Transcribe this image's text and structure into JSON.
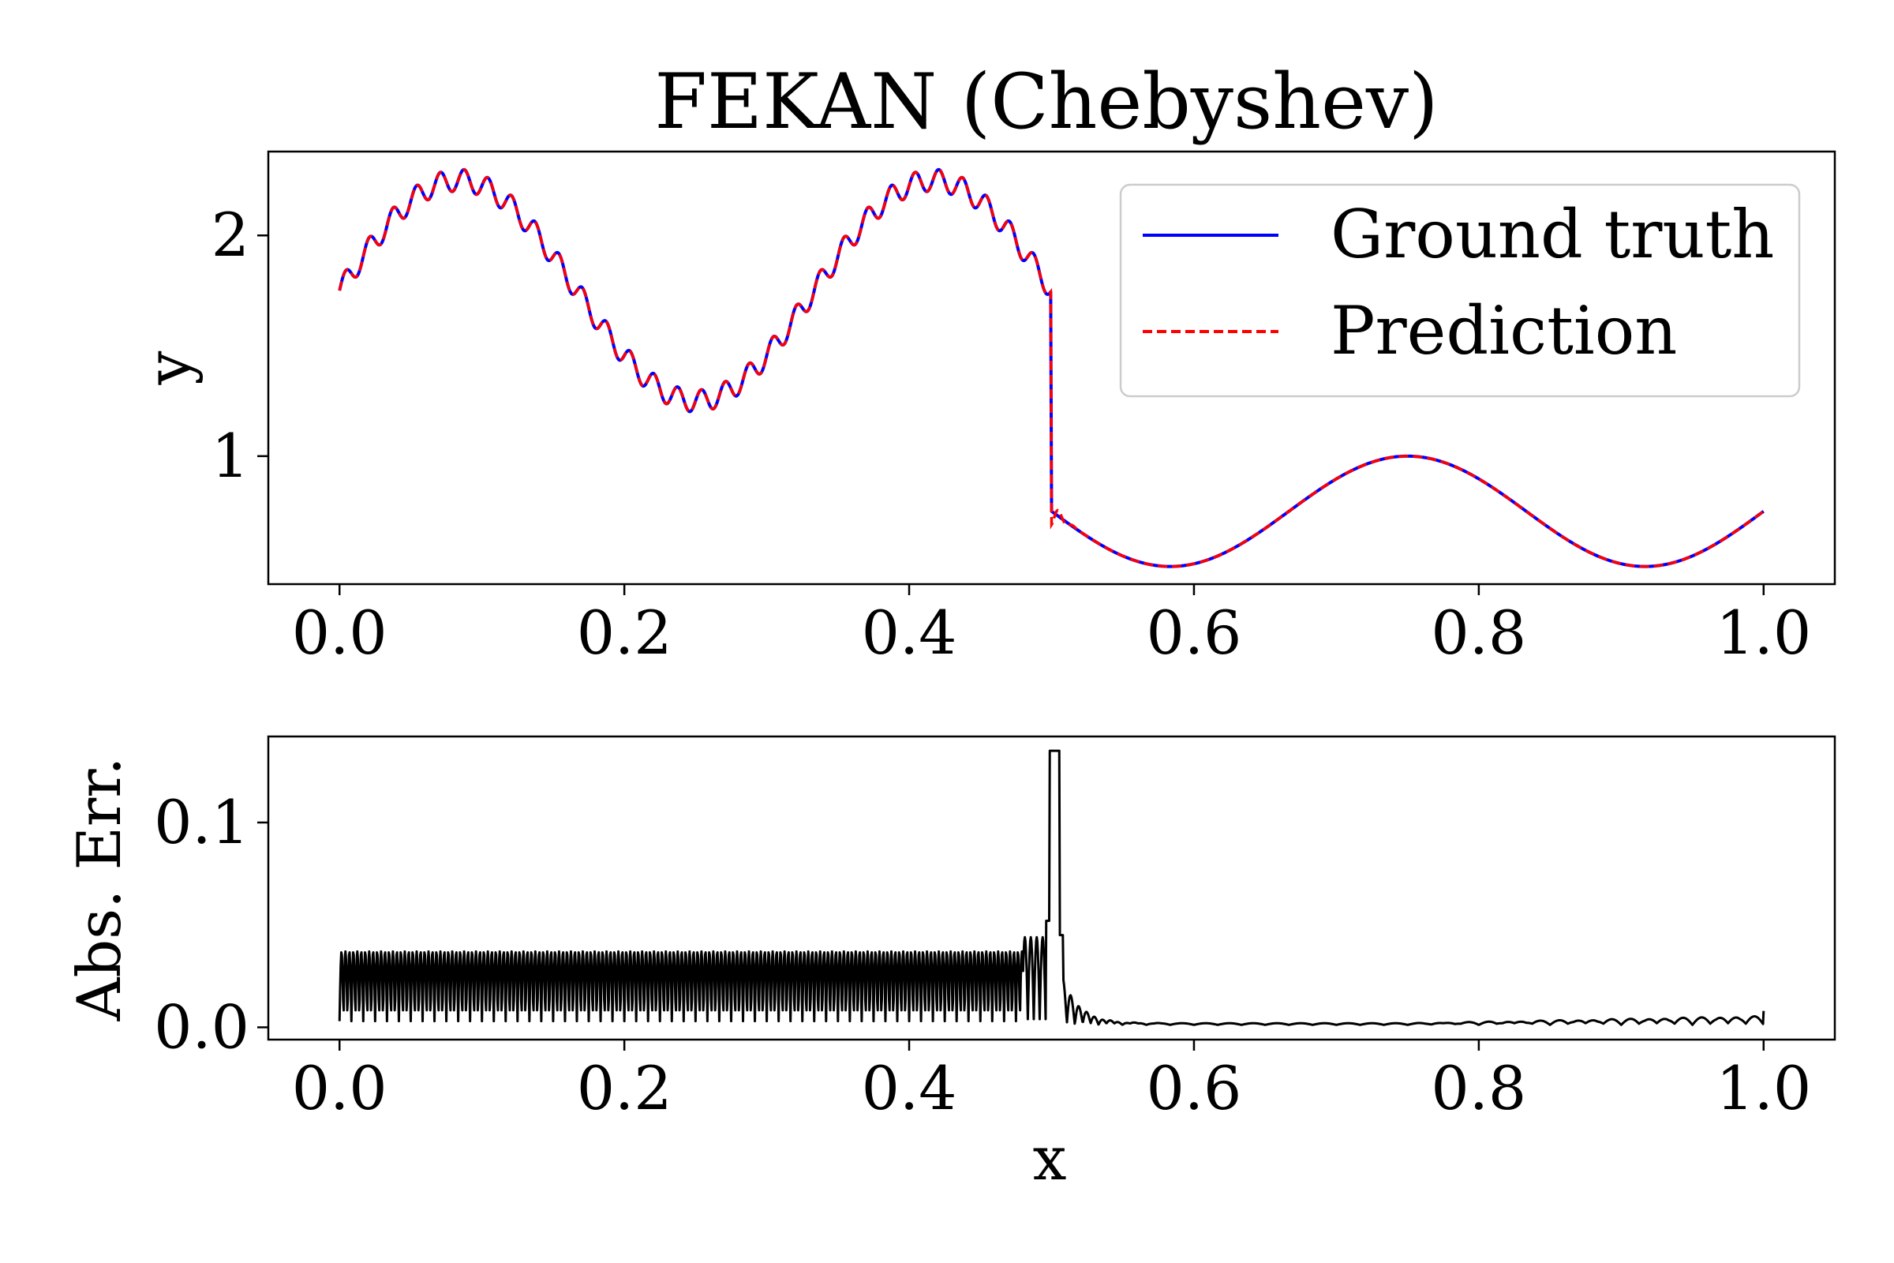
{
  "chart_data": [
    {
      "type": "line",
      "title": "FEKAN (Chebyshev)",
      "xlabel": "",
      "ylabel": "y",
      "xlim": [
        -0.05,
        1.05
      ],
      "ylim": [
        0.42,
        2.38
      ],
      "xticks": [
        "0.0",
        "0.2",
        "0.4",
        "0.6",
        "0.8",
        "1.0"
      ],
      "xtick_values": [
        0.0,
        0.2,
        0.4,
        0.6,
        0.8,
        1.0
      ],
      "yticks": [
        "1",
        "2"
      ],
      "ytick_values": [
        1,
        2
      ],
      "legend_position": "upper-right",
      "grid": false,
      "series": [
        {
          "name": "Ground truth",
          "color": "#0000ff",
          "style": "solid",
          "function": "x<0.5: 1.75 + 0.5*sin(6*pi*x) + 0.05*sin(120*pi*x); x>=0.5: 0.75 + 0.25*sin(6*pi*x)"
        },
        {
          "name": "Prediction",
          "color": "#ff0000",
          "style": "dashed",
          "function": "ground truth with small smoothing artefacts near x = 0.5"
        }
      ]
    },
    {
      "type": "line",
      "title": "",
      "xlabel": "x",
      "ylabel": "Abs. Err.",
      "xlim": [
        -0.05,
        1.05
      ],
      "ylim": [
        -0.006,
        0.142
      ],
      "xticks": [
        "0.0",
        "0.2",
        "0.4",
        "0.6",
        "0.8",
        "1.0"
      ],
      "xtick_values": [
        0.0,
        0.2,
        0.4,
        0.6,
        0.8,
        1.0
      ],
      "yticks": [
        "0.0",
        "0.1"
      ],
      "ytick_values": [
        0.0,
        0.1
      ],
      "grid": false,
      "series": [
        {
          "name": "",
          "color": "#000000",
          "style": "solid",
          "function": "oscillating error 0.003–0.037 for x<0.48, spike to 0.135 at x≈0.50, decaying ripples to ≈0.002 for x>0.55, slight rise to 0.008 at x=1.0"
        }
      ]
    }
  ]
}
